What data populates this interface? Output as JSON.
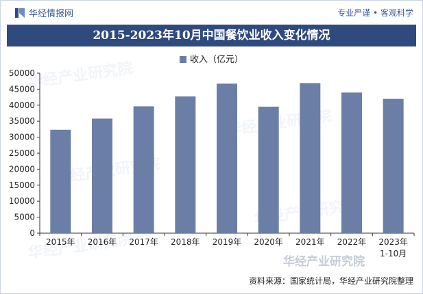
{
  "header": {
    "brand": "华经情报网",
    "slogan": "专业严谨 • 客观科学"
  },
  "chart_data": {
    "type": "bar",
    "title": "2015-2023年10月中国餐饮业收入变化情况",
    "categories": [
      "2015年",
      "2016年",
      "2017年",
      "2018年",
      "2019年",
      "2020年",
      "2021年",
      "2022年",
      "2023年\n1-10月"
    ],
    "series": [
      {
        "name": "收入（亿元）",
        "values": [
          32310,
          35799,
          39644,
          42716,
          46721,
          39527,
          46895,
          43941,
          41963
        ]
      }
    ],
    "ylim": [
      0,
      50000
    ],
    "yticks": [
      0,
      5000,
      10000,
      15000,
      20000,
      25000,
      30000,
      35000,
      40000,
      45000,
      50000
    ],
    "bar_color": "#6b7ea6",
    "grid": false,
    "legend_position": "top-center"
  },
  "footer": {
    "source": "资料来源：国家统计局，华经产业研究院整理",
    "watermark": "华经产业研究院"
  },
  "colors": {
    "title_bg": "#2f4a7d",
    "brand_text": "#3a5a93"
  }
}
